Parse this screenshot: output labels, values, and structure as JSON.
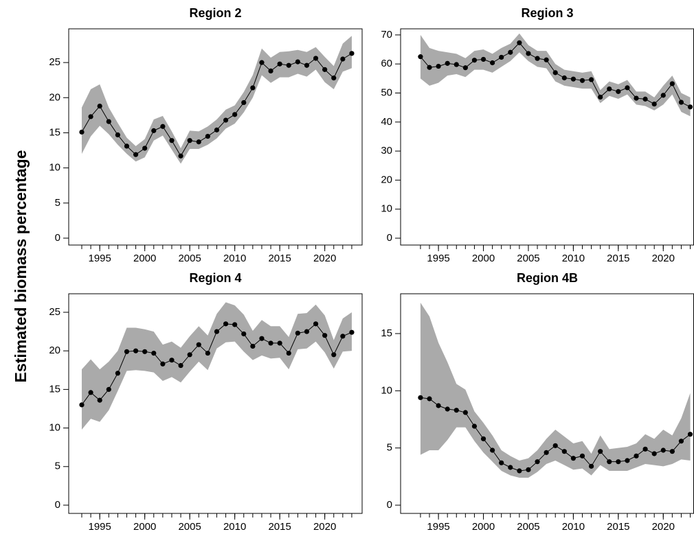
{
  "ylabel": "Estimated biomass percentage",
  "chart_data": [
    {
      "type": "line",
      "title": "Region 2",
      "x": [
        1993,
        1994,
        1995,
        1996,
        1997,
        1998,
        1999,
        2000,
        2001,
        2002,
        2003,
        2004,
        2005,
        2006,
        2007,
        2008,
        2009,
        2010,
        2011,
        2012,
        2013,
        2014,
        2015,
        2016,
        2017,
        2018,
        2019,
        2020,
        2021,
        2022,
        2023
      ],
      "series": [
        {
          "color": "#000000",
          "band_color": "#aaaaaa",
          "values": [
            15.1,
            17.3,
            18.8,
            16.6,
            14.7,
            13.1,
            11.9,
            12.8,
            15.3,
            15.9,
            13.9,
            11.7,
            13.9,
            13.7,
            14.5,
            15.4,
            16.8,
            17.6,
            19.3,
            21.4,
            25.0,
            23.8,
            24.8,
            24.6,
            25.1,
            24.6,
            25.6,
            24.0,
            22.8,
            25.5,
            26.3
          ],
          "lower": [
            12.0,
            14.5,
            16.0,
            14.8,
            13.3,
            12.0,
            10.9,
            11.5,
            13.9,
            14.6,
            12.6,
            10.6,
            12.7,
            12.7,
            13.3,
            14.2,
            15.6,
            16.3,
            17.9,
            20.0,
            23.2,
            22.1,
            22.9,
            22.9,
            23.4,
            23.0,
            24.0,
            22.2,
            21.2,
            23.7,
            24.2
          ],
          "upper": [
            18.6,
            21.2,
            21.9,
            18.6,
            16.4,
            14.3,
            13.1,
            14.1,
            16.9,
            17.4,
            15.2,
            12.8,
            15.3,
            15.2,
            15.9,
            16.9,
            18.3,
            18.9,
            20.8,
            23.2,
            27.0,
            25.7,
            26.5,
            26.6,
            26.8,
            26.5,
            27.2,
            25.8,
            24.5,
            27.7,
            28.8
          ]
        }
      ],
      "xlim": [
        1991.55,
        2024.15
      ],
      "xticks": [
        1995,
        2000,
        2005,
        2010,
        2015,
        2020
      ],
      "xminorticks": [
        1993,
        1994,
        1995,
        1996,
        1997,
        1998,
        1999,
        2000,
        2001,
        2002,
        2003,
        2004,
        2005,
        2006,
        2007,
        2008,
        2009,
        2010,
        2011,
        2012,
        2013,
        2014,
        2015,
        2016,
        2017,
        2018,
        2019,
        2020,
        2021,
        2022,
        2023
      ],
      "ylim": [
        -0.98,
        29.8
      ],
      "yticks": [
        0,
        5,
        10,
        15,
        20,
        25
      ]
    },
    {
      "type": "line",
      "title": "Region 3",
      "x": [
        1993,
        1994,
        1995,
        1996,
        1997,
        1998,
        1999,
        2000,
        2001,
        2002,
        2003,
        2004,
        2005,
        2006,
        2007,
        2008,
        2009,
        2010,
        2011,
        2012,
        2013,
        2014,
        2015,
        2016,
        2017,
        2018,
        2019,
        2020,
        2021,
        2022,
        2023
      ],
      "series": [
        {
          "color": "#000000",
          "band_color": "#aaaaaa",
          "values": [
            62.5,
            58.8,
            59.2,
            60.2,
            59.8,
            58.7,
            61.3,
            61.6,
            60.4,
            62.3,
            64.0,
            67.3,
            63.6,
            61.9,
            61.4,
            57.0,
            55.2,
            54.8,
            54.3,
            54.6,
            48.6,
            51.4,
            50.5,
            51.8,
            48.2,
            47.9,
            46.2,
            49.2,
            53.2,
            46.8,
            45.2
          ],
          "lower": [
            55,
            52.5,
            53.5,
            56,
            56.5,
            55.5,
            58,
            58,
            57,
            59,
            61,
            64,
            61,
            59,
            58.5,
            54,
            52.5,
            52,
            51.5,
            51.5,
            46.5,
            49,
            48,
            49.5,
            46,
            45.5,
            44,
            46,
            49.5,
            43.5,
            42
          ],
          "upper": [
            70,
            65.5,
            64.5,
            64,
            63.5,
            62,
            64.5,
            65,
            63.5,
            65.5,
            67,
            70.5,
            66.5,
            64.5,
            64.5,
            60,
            58,
            57.5,
            57,
            57.5,
            51,
            54,
            53,
            54.5,
            50.5,
            50.5,
            48.5,
            52.5,
            56,
            50,
            48.5
          ]
        }
      ],
      "xlim": [
        1990.79,
        2023.38
      ],
      "xticks": [
        1995,
        2000,
        2005,
        2010,
        2015,
        2020
      ],
      "xminorticks": [
        1993,
        1994,
        1995,
        1996,
        1997,
        1998,
        1999,
        2000,
        2001,
        2002,
        2003,
        2004,
        2005,
        2006,
        2007,
        2008,
        2009,
        2010,
        2011,
        2012,
        2013,
        2014,
        2015,
        2016,
        2017,
        2018,
        2019,
        2020,
        2021,
        2022,
        2023
      ],
      "ylim": [
        -2.36,
        72.1
      ],
      "yticks": [
        0,
        10,
        20,
        30,
        40,
        50,
        60,
        70
      ]
    },
    {
      "type": "line",
      "title": "Region 4",
      "x": [
        1993,
        1994,
        1995,
        1996,
        1997,
        1998,
        1999,
        2000,
        2001,
        2002,
        2003,
        2004,
        2005,
        2006,
        2007,
        2008,
        2009,
        2010,
        2011,
        2012,
        2013,
        2014,
        2015,
        2016,
        2017,
        2018,
        2019,
        2020,
        2021,
        2022,
        2023
      ],
      "series": [
        {
          "color": "#000000",
          "band_color": "#aaaaaa",
          "values": [
            13.0,
            14.6,
            13.6,
            15.0,
            17.1,
            19.9,
            20.0,
            19.9,
            19.7,
            18.3,
            18.8,
            18.1,
            19.5,
            20.8,
            19.7,
            22.5,
            23.5,
            23.4,
            22.2,
            20.6,
            21.6,
            21.0,
            21.0,
            19.7,
            22.3,
            22.5,
            23.5,
            22.0,
            19.5,
            21.9,
            22.4
          ],
          "lower": [
            9.8,
            11.2,
            10.8,
            12.3,
            14.8,
            17.4,
            17.5,
            17.4,
            17.2,
            16.1,
            16.6,
            15.9,
            17.3,
            18.6,
            17.5,
            20.3,
            21.1,
            21.2,
            19.9,
            18.8,
            19.4,
            19.0,
            19.1,
            17.6,
            20.2,
            20.3,
            21.2,
            19.8,
            17.7,
            19.9,
            20.0
          ],
          "upper": [
            17.6,
            18.9,
            17.6,
            18.6,
            20.0,
            23.0,
            23.0,
            22.8,
            22.5,
            20.8,
            21.2,
            20.4,
            21.9,
            23.2,
            22.0,
            24.8,
            26.3,
            25.9,
            24.7,
            22.6,
            24.0,
            23.2,
            23.2,
            21.8,
            24.8,
            24.9,
            26.0,
            24.6,
            21.4,
            24.2,
            25.0
          ]
        }
      ],
      "xlim": [
        1991.55,
        2024.15
      ],
      "xticks": [
        1995,
        2000,
        2005,
        2010,
        2015,
        2020
      ],
      "xminorticks": [
        1993,
        1994,
        1995,
        1996,
        1997,
        1998,
        1999,
        2000,
        2001,
        2002,
        2003,
        2004,
        2005,
        2006,
        2007,
        2008,
        2009,
        2010,
        2011,
        2012,
        2013,
        2014,
        2015,
        2016,
        2017,
        2018,
        2019,
        2020,
        2021,
        2022,
        2023
      ],
      "ylim": [
        -1.07,
        27.4
      ],
      "yticks": [
        0,
        5,
        10,
        15,
        20,
        25
      ]
    },
    {
      "type": "line",
      "title": "Region 4B",
      "x": [
        1993,
        1994,
        1995,
        1996,
        1997,
        1998,
        1999,
        2000,
        2001,
        2002,
        2003,
        2004,
        2005,
        2006,
        2007,
        2008,
        2009,
        2010,
        2011,
        2012,
        2013,
        2014,
        2015,
        2016,
        2017,
        2018,
        2019,
        2020,
        2021,
        2022,
        2023
      ],
      "series": [
        {
          "color": "#000000",
          "band_color": "#aaaaaa",
          "values": [
            9.4,
            9.3,
            8.7,
            8.4,
            8.3,
            8.1,
            6.9,
            5.8,
            4.8,
            3.7,
            3.3,
            3.0,
            3.1,
            3.8,
            4.6,
            5.2,
            4.7,
            4.1,
            4.3,
            3.4,
            4.7,
            3.8,
            3.8,
            3.9,
            4.3,
            4.9,
            4.5,
            4.8,
            4.7,
            5.6,
            6.2
          ],
          "lower": [
            4.4,
            4.8,
            4.8,
            5.7,
            6.8,
            6.8,
            5.6,
            4.6,
            3.8,
            3.0,
            2.6,
            2.4,
            2.4,
            2.9,
            3.6,
            3.9,
            3.5,
            3.1,
            3.2,
            2.6,
            3.5,
            3.0,
            3.0,
            3.0,
            3.3,
            3.6,
            3.5,
            3.4,
            3.6,
            4.0,
            3.9
          ],
          "upper": [
            17.7,
            16.5,
            14.2,
            12.5,
            10.6,
            10.1,
            8.2,
            7.2,
            6.1,
            4.8,
            4.3,
            3.9,
            4.1,
            4.8,
            5.8,
            6.6,
            6.0,
            5.4,
            5.6,
            4.5,
            6.1,
            4.9,
            5.0,
            5.1,
            5.4,
            6.2,
            5.8,
            6.6,
            6.1,
            7.6,
            9.8
          ]
        }
      ],
      "xlim": [
        1990.79,
        2023.38
      ],
      "xticks": [
        1995,
        2000,
        2005,
        2010,
        2015,
        2020
      ],
      "xminorticks": [
        1993,
        1994,
        1995,
        1996,
        1997,
        1998,
        1999,
        2000,
        2001,
        2002,
        2003,
        2004,
        2005,
        2006,
        2007,
        2008,
        2009,
        2010,
        2011,
        2012,
        2013,
        2014,
        2015,
        2016,
        2017,
        2018,
        2019,
        2020,
        2021,
        2022,
        2023
      ],
      "ylim": [
        -0.72,
        18.48
      ],
      "yticks": [
        0,
        5,
        10,
        15
      ]
    }
  ]
}
